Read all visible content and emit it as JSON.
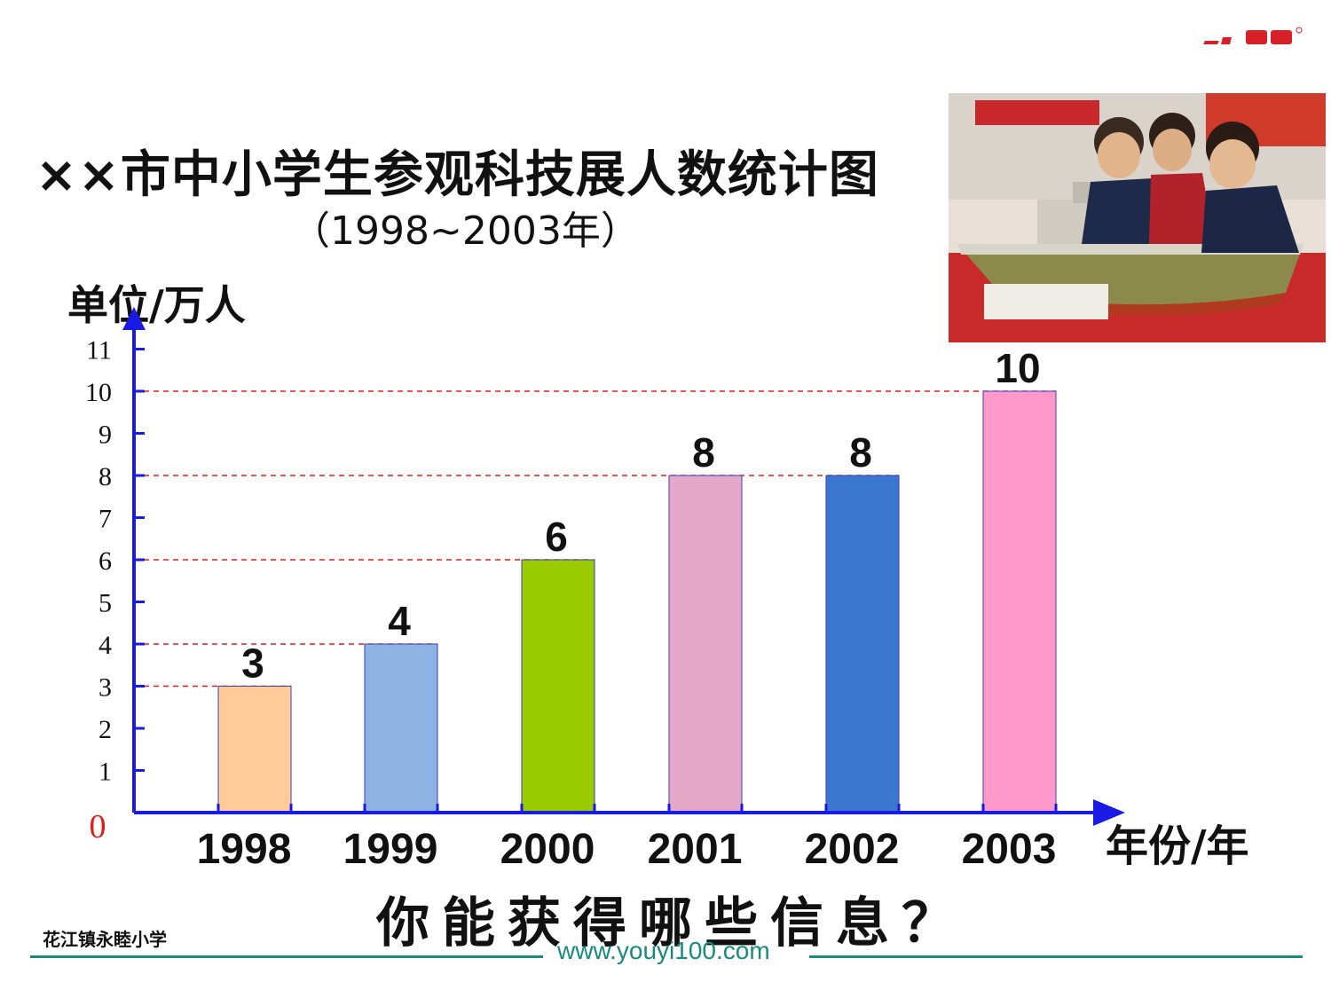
{
  "title": "××市中小学生参观科技展人数统计图",
  "subtitle": "（1998~2003年）",
  "question": "你能获得哪些信息？",
  "school": "花江镇永睦小学",
  "website": "www.youyi100.com",
  "colors": {
    "axis": "#1a1ae6",
    "guide": "#e31b1b",
    "footer": "#1a8a7e",
    "zero": "#e31b1b"
  },
  "chart_data": {
    "type": "bar",
    "ylabel": "单位/万人",
    "xlabel": "年份/年",
    "categories": [
      "1998",
      "1999",
      "2000",
      "2001",
      "2002",
      "2003"
    ],
    "values": [
      3,
      4,
      6,
      8,
      8,
      10
    ],
    "value_labels": [
      "3",
      "4",
      "6",
      "8",
      "8",
      "10"
    ],
    "bar_colors": [
      "#ffcc99",
      "#8db3e2",
      "#99cc00",
      "#e6a8c8",
      "#3a78d0",
      "#ff99cc"
    ],
    "y_ticks": [
      "1",
      "2",
      "3",
      "4",
      "5",
      "6",
      "7",
      "8",
      "9",
      "10",
      "11"
    ],
    "origin_label": "0",
    "ylim": [
      0,
      11
    ],
    "guide_lines_at": [
      3,
      4,
      6,
      8,
      10
    ]
  }
}
